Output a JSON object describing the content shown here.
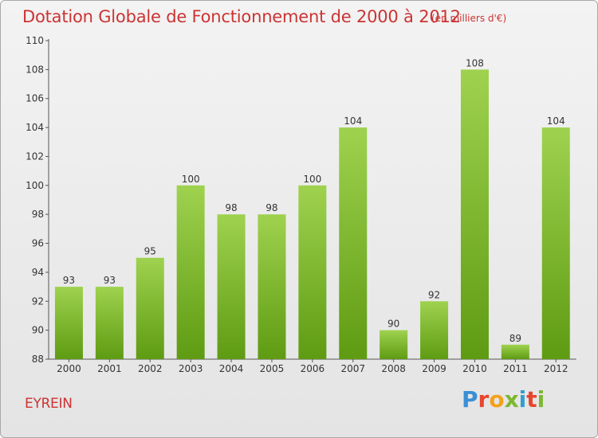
{
  "header": {
    "title": "Dotation Globale de Fonctionnement de 2000 à 2012",
    "subtitle": "(en milliers d'€)"
  },
  "footer": {
    "place": "EYREIN",
    "logo_text": "Proxiti",
    "logo_colors": [
      "#3a8fd6",
      "#e8452c",
      "#f2a21b",
      "#7cb82f",
      "#2f9fd0",
      "#e8452c",
      "#7cb82f"
    ]
  },
  "colors": {
    "bar_top": "#9fd24f",
    "bar_bottom": "#5e9b12",
    "text": "#333333",
    "title": "#cc3333"
  },
  "chart_data": {
    "type": "bar",
    "categories": [
      "2000",
      "2001",
      "2002",
      "2003",
      "2004",
      "2005",
      "2006",
      "2007",
      "2008",
      "2009",
      "2010",
      "2011",
      "2012"
    ],
    "values": [
      93,
      93,
      95,
      100,
      98,
      98,
      100,
      104,
      90,
      92,
      108,
      89,
      104
    ],
    "data_labels": [
      "93",
      "93",
      "95",
      "100",
      "98",
      "98",
      "100",
      "104",
      "90",
      "92",
      "108",
      "89",
      "104"
    ],
    "ylim": [
      88,
      110
    ],
    "yticks": [
      88,
      90,
      92,
      94,
      96,
      98,
      100,
      102,
      104,
      106,
      108,
      110
    ],
    "ytick_labels": [
      "88",
      "90",
      "92",
      "94",
      "96",
      "98",
      "100",
      "102",
      "104",
      "106",
      "108",
      "110"
    ],
    "grid": false,
    "xlabel": "",
    "ylabel": ""
  }
}
